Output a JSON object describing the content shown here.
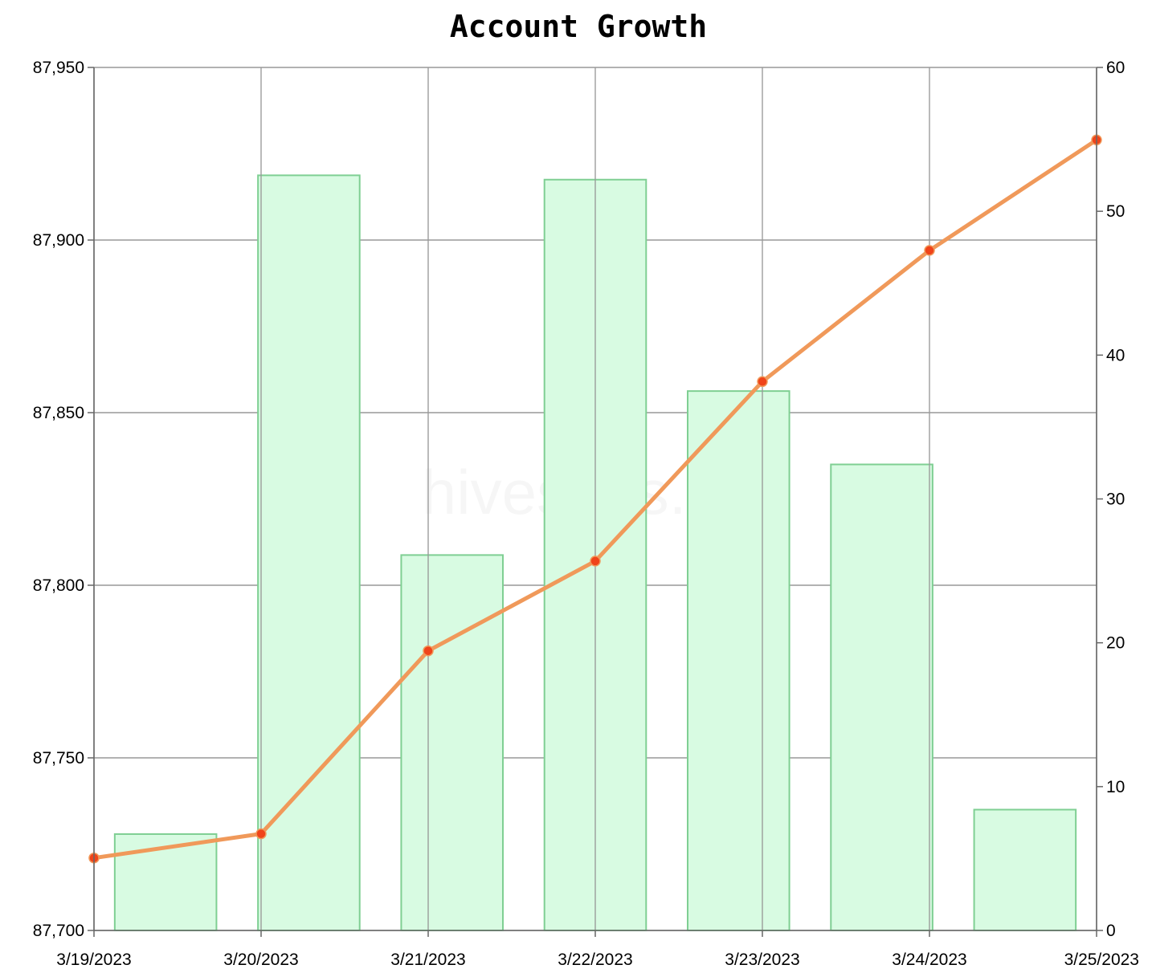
{
  "chart_data": {
    "type": "bar+line",
    "title": "Account Growth",
    "watermark": "hivestats.io",
    "categories": [
      "3/19/2023",
      "3/20/2023",
      "3/21/2023",
      "3/22/2023",
      "3/23/2023",
      "3/24/2023",
      "3/25/2023"
    ],
    "line": {
      "values": [
        87721,
        87728,
        87781,
        87807,
        87859,
        87897,
        87929
      ],
      "axis": "left",
      "color": "#f0995a",
      "marker_color": "#f0441a"
    },
    "bars": {
      "values": [
        6.7,
        52.5,
        26.1,
        52.2,
        37.5,
        32.4,
        8.4
      ],
      "axis": "right",
      "fill": "#d8fbe2",
      "stroke": "#7fcf93"
    },
    "y_left": {
      "min": 87700,
      "max": 87950,
      "ticks": [
        "87,700",
        "87,750",
        "87,800",
        "87,850",
        "87,900",
        "87,950"
      ],
      "tick_values": [
        87700,
        87750,
        87800,
        87850,
        87900,
        87950
      ]
    },
    "y_right": {
      "min": 0,
      "max": 60,
      "ticks": [
        "0",
        "10",
        "20",
        "30",
        "40",
        "50",
        "60"
      ],
      "tick_values": [
        0,
        10,
        20,
        30,
        40,
        50,
        60
      ]
    },
    "grid": true,
    "grid_color": "#999999",
    "legend": "none"
  }
}
